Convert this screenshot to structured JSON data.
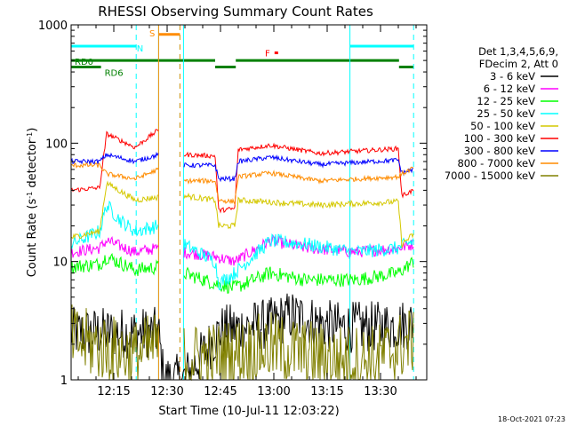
{
  "chart_data": {
    "type": "line",
    "title": "RHESSI Observing Summary Count Rates",
    "xlabel": "Start Time (10-Jul-11 12:03:22)",
    "ylabel_main": "Count Rate (s",
    "ylabel_sup1": "-1",
    "ylabel_mid": " detector",
    "ylabel_sup2": "-1",
    "ylabel_end": ")",
    "y_scale": "log",
    "ylim": [
      1,
      1000
    ],
    "xlim_minutes": [
      0,
      100
    ],
    "y_ticks": [
      {
        "value": 1,
        "label": "1"
      },
      {
        "value": 10,
        "label": "10"
      },
      {
        "value": 100,
        "label": "100"
      },
      {
        "value": 1000,
        "label": "1000"
      }
    ],
    "x_ticks": [
      {
        "minute": 12,
        "label": "12:15"
      },
      {
        "minute": 27,
        "label": "12:30"
      },
      {
        "minute": 42,
        "label": "12:45"
      },
      {
        "minute": 57,
        "label": "13:00"
      },
      {
        "minute": 72,
        "label": "13:15"
      },
      {
        "minute": 87,
        "label": "13:30"
      }
    ],
    "legend": {
      "position": "right",
      "header_lines": [
        "Det 1,3,4,5,6,9,",
        "FDecim 2, Att 0"
      ],
      "entries": [
        {
          "label": "3 - 6 keV",
          "color": "#000000"
        },
        {
          "label": "6 - 12 keV",
          "color": "#ff00ff"
        },
        {
          "label": "12 - 25 keV",
          "color": "#00ff00"
        },
        {
          "label": "25 - 50 keV",
          "color": "#00ffff"
        },
        {
          "label": "50 - 100 keV",
          "color": "#d4c800"
        },
        {
          "label": "100 - 300 keV",
          "color": "#ff0000"
        },
        {
          "label": "300 - 800 keV",
          "color": "#0000ff"
        },
        {
          "label": "800 - 7000 keV",
          "color": "#ff8c00"
        },
        {
          "label": "7000 - 15000 keV",
          "color": "#808000"
        }
      ]
    },
    "flags": [
      {
        "label": "S",
        "color": "#ff8c00",
        "segments": [
          [
            24.6,
            30.6
          ]
        ],
        "y_level": 830
      },
      {
        "label": "N",
        "color": "#00ffff",
        "segments": [
          [
            0,
            18.3
          ],
          [
            78.4,
            96.3
          ]
        ],
        "y_level": 660
      },
      {
        "label": "F",
        "color": "#ff0000",
        "segments": [
          [
            57.2,
            58.2
          ]
        ],
        "y_level": 580
      },
      {
        "label": "RD0",
        "color": "#008000",
        "segments": [
          [
            0,
            40.5
          ],
          [
            46.3,
            92.2
          ]
        ],
        "y_level": 500
      },
      {
        "label": "RD6",
        "color": "#008000",
        "segments": [
          [
            0,
            8.4
          ],
          [
            40.5,
            46.3
          ],
          [
            92.2,
            96.3
          ]
        ],
        "y_level": 440
      }
    ],
    "saa_markers_solid": [
      0,
      24.6,
      31.6,
      78.4
    ],
    "saa_markers_dashed": [
      18.3,
      30.6,
      96.3
    ],
    "series": [
      {
        "name": "3 - 6 keV",
        "color": "#000000",
        "noise": 0.22,
        "points": [
          [
            0,
            2.5
          ],
          [
            24.6,
            2.5
          ],
          [
            26,
            1
          ],
          [
            31.6,
            1
          ],
          [
            42,
            2.6
          ],
          [
            56,
            3.0
          ],
          [
            62,
            3.5
          ],
          [
            74,
            2.8
          ],
          [
            86,
            2.8
          ],
          [
            96.3,
            3.0
          ]
        ]
      },
      {
        "name": "6 - 12 keV",
        "color": "#ff00ff",
        "noise": 0.05,
        "points": [
          [
            0,
            12
          ],
          [
            8,
            13
          ],
          [
            10,
            15
          ],
          [
            18,
            12
          ],
          [
            24.6,
            13
          ],
          [
            31.6,
            12
          ],
          [
            40.5,
            11
          ],
          [
            46,
            10
          ],
          [
            56,
            15
          ],
          [
            66,
            13
          ],
          [
            80,
            12
          ],
          [
            92,
            13
          ],
          [
            96.3,
            14
          ]
        ]
      },
      {
        "name": "12 - 25 keV",
        "color": "#00ff00",
        "noise": 0.06,
        "points": [
          [
            0,
            9
          ],
          [
            8,
            9.5
          ],
          [
            10,
            11
          ],
          [
            18,
            8.5
          ],
          [
            24.6,
            9
          ],
          [
            31.6,
            8
          ],
          [
            40.5,
            6.5
          ],
          [
            46,
            6
          ],
          [
            56,
            8
          ],
          [
            66,
            7
          ],
          [
            80,
            7
          ],
          [
            92,
            8
          ],
          [
            96.3,
            10
          ]
        ]
      },
      {
        "name": "25 - 50 keV",
        "color": "#00ffff",
        "noise": 0.06,
        "points": [
          [
            0,
            14
          ],
          [
            8,
            18
          ],
          [
            10,
            30
          ],
          [
            14,
            22
          ],
          [
            18,
            18
          ],
          [
            24.6,
            20
          ],
          [
            31.6,
            14
          ],
          [
            40.5,
            10
          ],
          [
            41.5,
            6.5
          ],
          [
            46,
            8
          ],
          [
            56,
            15
          ],
          [
            66,
            14
          ],
          [
            80,
            12
          ],
          [
            92,
            13
          ],
          [
            96.3,
            15
          ]
        ]
      },
      {
        "name": "50 - 100 keV",
        "color": "#d4c800",
        "noise": 0.025,
        "points": [
          [
            0,
            16
          ],
          [
            8,
            18
          ],
          [
            10,
            46
          ],
          [
            18,
            33
          ],
          [
            24.6,
            35
          ],
          [
            31.6,
            36
          ],
          [
            40.5,
            33
          ],
          [
            41.5,
            20
          ],
          [
            46,
            20
          ],
          [
            47,
            33
          ],
          [
            70,
            30
          ],
          [
            92,
            32
          ],
          [
            93,
            14
          ],
          [
            96.3,
            17
          ]
        ]
      },
      {
        "name": "100 - 300 keV",
        "color": "#ff0000",
        "noise": 0.02,
        "points": [
          [
            0,
            40
          ],
          [
            8,
            42
          ],
          [
            10,
            120
          ],
          [
            18,
            92
          ],
          [
            24.6,
            130
          ],
          [
            31.6,
            80
          ],
          [
            40.5,
            78
          ],
          [
            41.5,
            27
          ],
          [
            46,
            28
          ],
          [
            47,
            88
          ],
          [
            56,
            96
          ],
          [
            70,
            82
          ],
          [
            92,
            90
          ],
          [
            93,
            36
          ],
          [
            96.3,
            40
          ]
        ]
      },
      {
        "name": "300 - 800 keV",
        "color": "#0000ff",
        "noise": 0.02,
        "points": [
          [
            0,
            70
          ],
          [
            8,
            70
          ],
          [
            10,
            80
          ],
          [
            18,
            70
          ],
          [
            24.6,
            80
          ],
          [
            31.6,
            65
          ],
          [
            40.5,
            65
          ],
          [
            41.5,
            50
          ],
          [
            46,
            50
          ],
          [
            47,
            70
          ],
          [
            56,
            76
          ],
          [
            70,
            66
          ],
          [
            92,
            72
          ],
          [
            93,
            56
          ],
          [
            96.3,
            60
          ]
        ]
      },
      {
        "name": "800 - 7000 keV",
        "color": "#ff8c00",
        "noise": 0.02,
        "points": [
          [
            0,
            65
          ],
          [
            8,
            65
          ],
          [
            10,
            55
          ],
          [
            18,
            50
          ],
          [
            24.6,
            60
          ],
          [
            31.6,
            48
          ],
          [
            40.5,
            48
          ],
          [
            41.5,
            33
          ],
          [
            46,
            32
          ],
          [
            47,
            52
          ],
          [
            56,
            56
          ],
          [
            70,
            48
          ],
          [
            92,
            52
          ],
          [
            93,
            55
          ],
          [
            96.3,
            62
          ]
        ]
      },
      {
        "name": "7000 - 15000 keV",
        "color": "#808000",
        "noise": 0.3,
        "points": [
          [
            0,
            2.2
          ],
          [
            18,
            1.6
          ],
          [
            24.6,
            2.0
          ],
          [
            31.6,
            1.5
          ],
          [
            42,
            1.6
          ],
          [
            56,
            1.9
          ],
          [
            74,
            1.5
          ],
          [
            86,
            1.5
          ],
          [
            96.3,
            2.2
          ]
        ]
      }
    ]
  },
  "footer": {
    "timestamp": "18-Oct-2021 07:23"
  }
}
